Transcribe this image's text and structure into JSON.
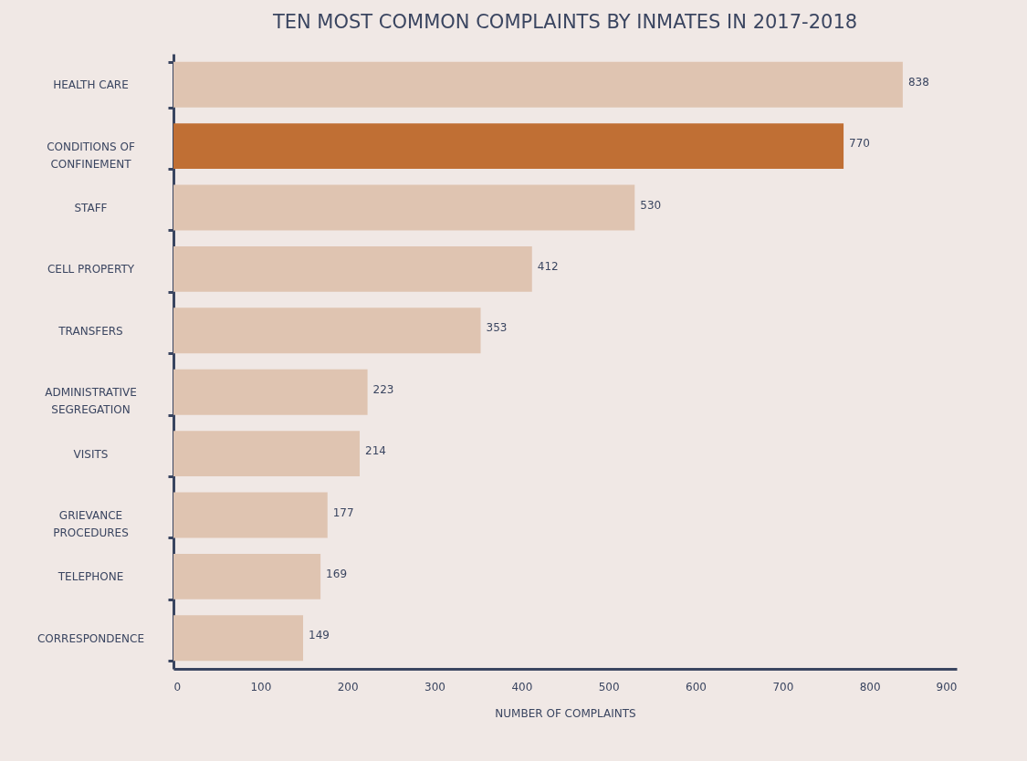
{
  "chart_data": {
    "type": "bar",
    "orientation": "horizontal",
    "title": "TEN MOST COMMON COMPLAINTS BY INMATES IN 2017-2018",
    "xlabel": "NUMBER OF COMPLAINTS",
    "categories": [
      "HEALTH CARE",
      "CONDITIONS OF CONFINEMENT",
      "STAFF",
      "CELL PROPERTY",
      "TRANSFERS",
      "ADMINISTRATIVE SEGREGATION",
      "VISITS",
      "GRIEVANCE PROCEDURES",
      "TELEPHONE",
      "CORRESPONDENCE"
    ],
    "values": [
      838,
      770,
      530,
      412,
      353,
      223,
      214,
      177,
      169,
      149
    ],
    "colors": [
      "#dfc4b1",
      "#c06f34",
      "#dfc4b1",
      "#dfc4b1",
      "#dfc4b1",
      "#dfc4b1",
      "#dfc4b1",
      "#dfc4b1",
      "#dfc4b1",
      "#dfc4b1"
    ],
    "xlim": [
      0,
      900
    ],
    "xticks": [
      0,
      100,
      200,
      300,
      400,
      500,
      600,
      700,
      800,
      900
    ],
    "data_labels": true,
    "grid": false
  }
}
